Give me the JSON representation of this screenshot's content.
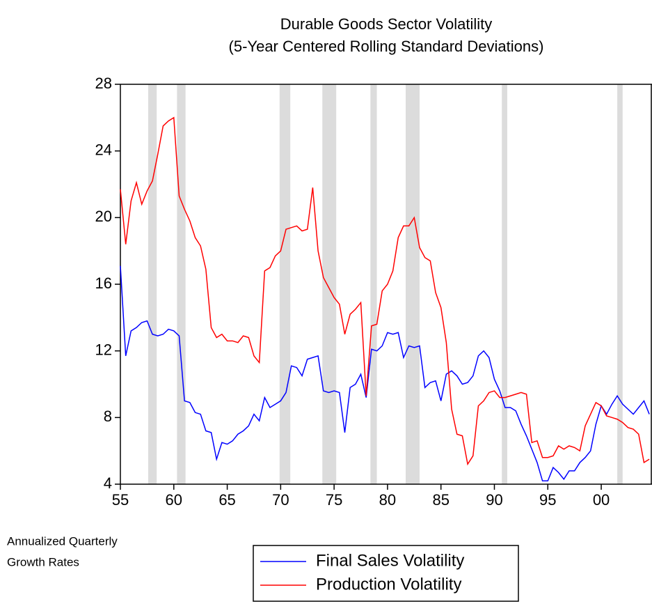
{
  "chart_data": {
    "type": "line",
    "title": "Durable Goods Sector Volatility",
    "subtitle": "(5-Year Centered Rolling Standard Deviations)",
    "annotation": [
      "Annualized Quarterly",
      "Growth Rates"
    ],
    "xlim": [
      1955,
      2004.75
    ],
    "ylim": [
      4,
      28
    ],
    "yticks": [
      4,
      8,
      12,
      16,
      20,
      24,
      28
    ],
    "xticks": [
      {
        "value": 1955,
        "label": "55"
      },
      {
        "value": 1960,
        "label": "60"
      },
      {
        "value": 1965,
        "label": "65"
      },
      {
        "value": 1970,
        "label": "70"
      },
      {
        "value": 1975,
        "label": "75"
      },
      {
        "value": 1980,
        "label": "80"
      },
      {
        "value": 1985,
        "label": "85"
      },
      {
        "value": 1990,
        "label": "90"
      },
      {
        "value": 1995,
        "label": "95"
      },
      {
        "value": 2000,
        "label": "00"
      }
    ],
    "shaded_periods": [
      [
        1957.6,
        1958.4
      ],
      [
        1960.3,
        1961.1
      ],
      [
        1969.9,
        1970.9
      ],
      [
        1973.9,
        1975.2
      ],
      [
        1978.4,
        1979.0
      ],
      [
        1981.7,
        1983.0
      ],
      [
        1990.7,
        1991.2
      ],
      [
        2001.5,
        2002.0
      ]
    ],
    "shade_color": "#dcdcdc",
    "x": [
      1955.0,
      1955.5,
      1956.0,
      1956.5,
      1957.0,
      1957.5,
      1958.0,
      1958.5,
      1959.0,
      1959.5,
      1960.0,
      1960.5,
      1961.0,
      1961.5,
      1962.0,
      1962.5,
      1963.0,
      1963.5,
      1964.0,
      1964.5,
      1965.0,
      1965.5,
      1966.0,
      1966.5,
      1967.0,
      1967.5,
      1968.0,
      1968.5,
      1969.0,
      1969.5,
      1970.0,
      1970.5,
      1971.0,
      1971.5,
      1972.0,
      1972.5,
      1973.0,
      1973.5,
      1974.0,
      1974.5,
      1975.0,
      1975.5,
      1976.0,
      1976.5,
      1977.0,
      1977.5,
      1978.0,
      1978.5,
      1979.0,
      1979.5,
      1980.0,
      1980.5,
      1981.0,
      1981.5,
      1982.0,
      1982.5,
      1983.0,
      1983.5,
      1984.0,
      1984.5,
      1985.0,
      1985.5,
      1986.0,
      1986.5,
      1987.0,
      1987.5,
      1988.0,
      1988.5,
      1989.0,
      1989.5,
      1990.0,
      1990.5,
      1991.0,
      1991.5,
      1992.0,
      1992.5,
      1993.0,
      1993.5,
      1994.0,
      1994.5,
      1995.0,
      1995.5,
      1996.0,
      1996.5,
      1997.0,
      1997.5,
      1998.0,
      1998.5,
      1999.0,
      1999.5,
      2000.0,
      2000.5,
      2001.0,
      2001.5,
      2002.0,
      2002.5,
      2003.0,
      2003.5,
      2004.0,
      2004.5
    ],
    "series": [
      {
        "name": "Final Sales Volatility",
        "color": "#0000ff",
        "values": [
          17.1,
          11.7,
          13.2,
          13.4,
          13.7,
          13.8,
          13.0,
          12.9,
          13.0,
          13.3,
          13.2,
          12.9,
          9.0,
          8.9,
          8.3,
          8.2,
          7.2,
          7.1,
          5.5,
          6.5,
          6.4,
          6.6,
          7.0,
          7.2,
          7.5,
          8.2,
          7.8,
          9.2,
          8.6,
          8.8,
          9.0,
          9.5,
          11.1,
          11.0,
          10.5,
          11.5,
          11.6,
          11.7,
          9.6,
          9.5,
          9.6,
          9.5,
          7.1,
          9.8,
          10.0,
          10.6,
          9.2,
          12.1,
          12.0,
          12.3,
          13.1,
          13.0,
          13.1,
          11.6,
          12.3,
          12.2,
          12.3,
          9.8,
          10.1,
          10.2,
          9.0,
          10.6,
          10.8,
          10.5,
          10.0,
          10.1,
          10.5,
          11.7,
          12.0,
          11.6,
          10.3,
          9.6,
          8.6,
          8.6,
          8.4,
          7.6,
          6.9,
          6.1,
          5.3,
          4.2,
          4.2,
          5.0,
          4.7,
          4.3,
          4.8,
          4.8,
          5.3,
          5.6,
          6.0,
          7.6,
          8.7,
          8.2,
          8.8,
          9.3,
          8.8,
          8.5,
          8.2,
          8.6,
          9.0,
          8.2
        ]
      },
      {
        "name": "Production Volatility",
        "color": "#ff0000",
        "values": [
          21.7,
          18.4,
          21.0,
          22.1,
          20.8,
          21.6,
          22.2,
          23.8,
          25.5,
          25.8,
          26.0,
          21.3,
          20.5,
          19.8,
          18.8,
          18.3,
          16.9,
          13.4,
          12.8,
          13.0,
          12.6,
          12.6,
          12.5,
          12.9,
          12.8,
          11.7,
          11.3,
          16.8,
          17.0,
          17.7,
          18.0,
          19.3,
          19.4,
          19.5,
          19.2,
          19.3,
          21.8,
          18.0,
          16.4,
          15.8,
          15.2,
          14.8,
          13.0,
          14.2,
          14.5,
          14.9,
          9.3,
          13.5,
          13.6,
          15.6,
          16.0,
          16.8,
          18.8,
          19.5,
          19.5,
          20.0,
          18.2,
          17.6,
          17.4,
          15.5,
          14.6,
          12.5,
          8.5,
          7.0,
          6.9,
          5.2,
          5.7,
          8.7,
          9.0,
          9.5,
          9.6,
          9.2,
          9.2,
          9.3,
          9.4,
          9.5,
          9.4,
          6.5,
          6.6,
          5.6,
          5.6,
          5.7,
          6.3,
          6.1,
          6.3,
          6.2,
          6.0,
          7.5,
          8.2,
          8.9,
          8.7,
          8.1,
          8.0,
          7.9,
          7.7,
          7.4,
          7.3,
          7.0,
          5.3,
          5.5
        ]
      }
    ]
  }
}
